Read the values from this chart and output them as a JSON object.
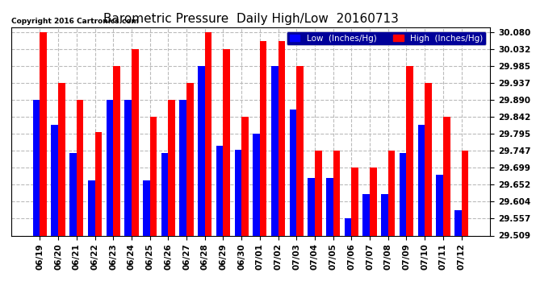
{
  "title": "Barometric Pressure  Daily High/Low  20160713",
  "copyright": "Copyright 2016 Cartronics.com",
  "legend_low": "Low  (Inches/Hg)",
  "legend_high": "High  (Inches/Hg)",
  "dates": [
    "06/19",
    "06/20",
    "06/21",
    "06/22",
    "06/23",
    "06/24",
    "06/25",
    "06/26",
    "06/27",
    "06/28",
    "06/29",
    "06/30",
    "07/01",
    "07/02",
    "07/03",
    "07/04",
    "07/05",
    "07/06",
    "07/07",
    "07/08",
    "07/09",
    "07/10",
    "07/11",
    "07/12"
  ],
  "low_values": [
    29.89,
    29.82,
    29.74,
    29.665,
    29.89,
    29.89,
    29.665,
    29.74,
    29.89,
    29.985,
    29.76,
    29.75,
    29.795,
    29.985,
    29.862,
    29.67,
    29.67,
    29.557,
    29.625,
    29.625,
    29.74,
    29.82,
    29.68,
    29.58
  ],
  "high_values": [
    30.08,
    29.937,
    29.89,
    29.8,
    29.985,
    30.032,
    29.843,
    29.89,
    29.937,
    30.08,
    30.032,
    29.843,
    30.055,
    30.055,
    29.985,
    29.747,
    29.747,
    29.699,
    29.699,
    29.747,
    29.985,
    29.937,
    29.843,
    29.747
  ],
  "ylim_min": 29.509,
  "ylim_max": 30.094,
  "yticks": [
    29.509,
    29.557,
    29.604,
    29.652,
    29.699,
    29.747,
    29.795,
    29.842,
    29.89,
    29.937,
    29.985,
    30.032,
    30.08
  ],
  "bg_color": "#ffffff",
  "plot_bg_color": "#ffffff",
  "grid_color": "#bbbbbb",
  "bar_color_low": "#0000ff",
  "bar_color_high": "#ff0000",
  "title_fontsize": 11,
  "tick_fontsize": 7.5,
  "bar_width": 0.38,
  "legend_bg": "#000099"
}
